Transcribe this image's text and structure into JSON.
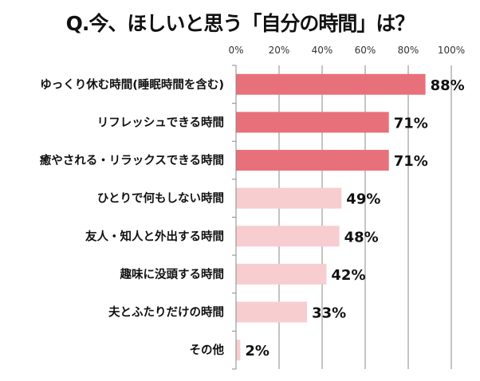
{
  "chart_data": {
    "type": "bar",
    "orientation": "horizontal",
    "title": "Q.今、ほしいと思う「自分の時間」は？",
    "categories": [
      "ゆっくり休む時間(睡眠時間を含む)",
      "リフレッシュできる時間",
      "癒やされる・リラックスできる時間",
      "ひとりで何もしない時間",
      "友人・知人と外出する時間",
      "趣味に没頭する時間",
      "夫とふたりだけの時間",
      "その他"
    ],
    "values": [
      88,
      71,
      71,
      49,
      48,
      42,
      33,
      2
    ],
    "data_labels": [
      "88%",
      "71%",
      "71%",
      "49%",
      "48%",
      "42%",
      "33%",
      "2%"
    ],
    "xlim": [
      0,
      100
    ],
    "x_ticks": [
      "0%",
      "20%",
      "40%",
      "60%",
      "80%",
      "100%"
    ],
    "x_axis_position": "top",
    "grid": true,
    "colors": {
      "highlight": "#e8707a",
      "normal": "#f7cdd0",
      "highlight_count": 3
    }
  }
}
